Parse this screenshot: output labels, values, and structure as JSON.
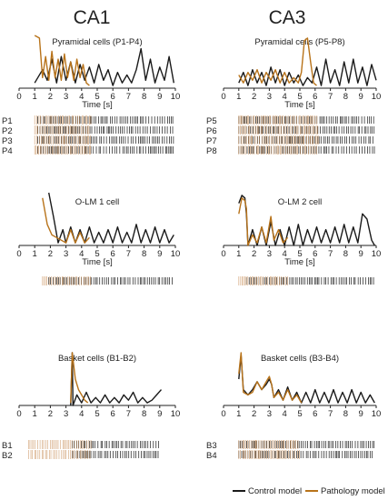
{
  "colors": {
    "control": "#1a1a1a",
    "pathology": "#b8731a",
    "raster_patho": "#c9905a"
  },
  "columns": [
    {
      "title": "CA1",
      "panels": [
        0,
        1,
        2
      ]
    },
    {
      "title": "CA3",
      "panels": [
        3,
        4,
        5
      ]
    }
  ],
  "legend": {
    "control": "Control model",
    "pathology": "Pathology model"
  },
  "chart_data": [
    {
      "type": "line",
      "region": "CA1",
      "title": "Pyramidal cells (P1-P4)",
      "xlabel": "Time [s]",
      "xlim": [
        0,
        10
      ],
      "xticks": [
        0,
        1,
        2,
        3,
        4,
        5,
        6,
        7,
        8,
        9,
        10
      ],
      "series": [
        {
          "name": "Control model",
          "x": [
            1.0,
            1.5,
            1.8,
            2.1,
            2.4,
            2.7,
            3.0,
            3.3,
            3.6,
            3.9,
            4.2,
            4.5,
            4.8,
            5.1,
            5.4,
            5.7,
            6.0,
            6.3,
            6.6,
            6.9,
            7.2,
            7.5,
            7.8,
            8.1,
            8.4,
            8.7,
            9.0,
            9.3,
            9.6,
            9.9
          ],
          "y": [
            0.1,
            0.35,
            0.15,
            0.55,
            0.1,
            0.6,
            0.15,
            0.5,
            0.1,
            0.45,
            0.15,
            0.4,
            0.1,
            0.45,
            0.15,
            0.35,
            0.05,
            0.3,
            0.1,
            0.25,
            0.1,
            0.35,
            0.75,
            0.15,
            0.55,
            0.1,
            0.4,
            0.15,
            0.6,
            0.1
          ]
        },
        {
          "name": "Pathology model",
          "x": [
            1.0,
            1.3,
            1.5,
            1.7,
            1.9,
            2.1,
            2.3,
            2.5,
            2.7,
            2.9,
            3.1,
            3.3,
            3.5,
            3.7,
            3.9,
            4.1,
            4.3,
            4.5
          ],
          "y": [
            1.0,
            0.95,
            0.2,
            0.6,
            0.15,
            0.7,
            0.2,
            0.55,
            0.15,
            0.65,
            0.2,
            0.5,
            0.15,
            0.55,
            0.2,
            0.45,
            0.1,
            0.05
          ]
        }
      ],
      "raster": {
        "labels": [
          "P1",
          "P2",
          "P3",
          "P4"
        ],
        "control_start": 1.2,
        "control_end": 9.9,
        "pathology_start": 1.0,
        "pathology_end": 4.6
      }
    },
    {
      "type": "line",
      "region": "CA1",
      "title": "O-LM 1 cell",
      "xlabel": "Time [s]",
      "xlim": [
        0,
        10
      ],
      "xticks": [
        0,
        1,
        2,
        3,
        4,
        5,
        6,
        7,
        8,
        9,
        10
      ],
      "series": [
        {
          "name": "Control model",
          "x": [
            1.9,
            2.2,
            2.5,
            2.8,
            3.0,
            3.3,
            3.6,
            3.9,
            4.2,
            4.5,
            4.8,
            5.1,
            5.4,
            5.7,
            6.0,
            6.3,
            6.6,
            6.9,
            7.2,
            7.5,
            7.8,
            8.1,
            8.4,
            8.7,
            9.0,
            9.3,
            9.6,
            9.9
          ],
          "y": [
            1.0,
            0.55,
            0.05,
            0.3,
            0.05,
            0.35,
            0.05,
            0.3,
            0.05,
            0.35,
            0.05,
            0.25,
            0.05,
            0.3,
            0.05,
            0.35,
            0.05,
            0.25,
            0.05,
            0.4,
            0.05,
            0.3,
            0.05,
            0.35,
            0.05,
            0.3,
            0.05,
            0.2
          ]
        },
        {
          "name": "Pathology model",
          "x": [
            1.5,
            1.8,
            2.1,
            2.4,
            2.7,
            3.0,
            3.3,
            3.6,
            3.9,
            4.2,
            4.5
          ],
          "y": [
            0.9,
            0.4,
            0.2,
            0.15,
            0.1,
            0.05,
            0.3,
            0.05,
            0.25,
            0.05,
            0.15
          ]
        }
      ],
      "raster": {
        "labels": [
          ""
        ],
        "control_start": 1.9,
        "control_end": 9.9,
        "pathology_start": 1.5,
        "pathology_end": 4.6
      }
    },
    {
      "type": "line",
      "region": "CA1",
      "title": "Basket cells (B1-B2)",
      "xlabel": "",
      "xlim": [
        0,
        10
      ],
      "xticks": [
        0,
        1,
        2,
        3,
        4,
        5,
        6,
        7,
        8,
        9,
        10
      ],
      "series": [
        {
          "name": "Control model",
          "x": [
            3.3,
            3.4,
            3.45,
            3.7,
            4.0,
            4.3,
            4.6,
            4.9,
            5.2,
            5.5,
            5.8,
            6.1,
            6.4,
            6.7,
            7.0,
            7.3,
            7.6,
            7.9,
            8.2,
            8.5,
            8.8,
            9.1
          ],
          "y": [
            0.0,
            1.0,
            0.0,
            0.2,
            0.05,
            0.25,
            0.05,
            0.15,
            0.05,
            0.2,
            0.05,
            0.15,
            0.05,
            0.2,
            0.1,
            0.25,
            0.05,
            0.15,
            0.05,
            0.1,
            0.2,
            0.3
          ]
        },
        {
          "name": "Pathology model",
          "x": [
            3.3,
            3.4,
            3.6,
            3.8,
            4.0,
            4.2,
            4.4
          ],
          "y": [
            0.05,
            1.0,
            0.5,
            0.3,
            0.2,
            0.1,
            0.05
          ]
        }
      ],
      "raster": {
        "labels": [
          "B1",
          "B2"
        ],
        "control_start": 3.4,
        "control_end": 9.0,
        "pathology_start": 0.6,
        "pathology_end": 4.6
      }
    },
    {
      "type": "line",
      "region": "CA3",
      "title": "Pyramidal cells (P5-P8)",
      "xlabel": "Time [s]",
      "xlim": [
        0,
        10
      ],
      "xticks": [
        0,
        1,
        2,
        3,
        4,
        5,
        6,
        7,
        8,
        9,
        10
      ],
      "series": [
        {
          "name": "Control model",
          "x": [
            1.0,
            1.3,
            1.6,
            1.9,
            2.2,
            2.5,
            2.8,
            3.1,
            3.4,
            3.7,
            4.0,
            4.3,
            4.6,
            4.9,
            5.2,
            5.5,
            5.8,
            6.1,
            6.4,
            6.7,
            7.0,
            7.3,
            7.6,
            7.9,
            8.2,
            8.5,
            8.8,
            9.1,
            9.4,
            9.7,
            10.0
          ],
          "y": [
            0.1,
            0.3,
            0.05,
            0.35,
            0.1,
            0.3,
            0.05,
            0.4,
            0.1,
            0.35,
            0.05,
            0.3,
            0.1,
            0.25,
            0.05,
            0.2,
            0.1,
            0.4,
            0.05,
            0.55,
            0.1,
            0.35,
            0.05,
            0.5,
            0.1,
            0.55,
            0.1,
            0.4,
            0.05,
            0.45,
            0.15
          ]
        },
        {
          "name": "Pathology model",
          "x": [
            1.0,
            1.3,
            1.6,
            1.9,
            2.2,
            2.5,
            2.8,
            3.1,
            3.4,
            3.7,
            4.0,
            4.3,
            4.6,
            4.9,
            5.1,
            5.3,
            5.5,
            5.7,
            5.9,
            6.1
          ],
          "y": [
            0.25,
            0.1,
            0.3,
            0.15,
            0.35,
            0.1,
            0.3,
            0.15,
            0.35,
            0.1,
            0.3,
            0.1,
            0.2,
            0.1,
            0.3,
            0.9,
            0.95,
            0.5,
            0.1,
            0.05
          ]
        }
      ],
      "raster": {
        "labels": [
          "P5",
          "P6",
          "P7",
          "P8"
        ],
        "control_start": 1.0,
        "control_end": 9.9,
        "pathology_start": 1.0,
        "pathology_end": 6.2
      }
    },
    {
      "type": "line",
      "region": "CA3",
      "title": "O-LM 2 cell",
      "xlabel": "Time [s]",
      "xlim": [
        0,
        10
      ],
      "xticks": [
        0,
        1,
        2,
        3,
        4,
        5,
        6,
        7,
        8,
        9,
        10
      ],
      "series": [
        {
          "name": "Control model",
          "x": [
            1.0,
            1.2,
            1.4,
            1.5,
            1.6,
            1.9,
            2.2,
            2.5,
            2.8,
            3.1,
            3.4,
            3.7,
            4.0,
            4.3,
            4.6,
            4.9,
            5.2,
            5.5,
            5.8,
            6.1,
            6.4,
            6.7,
            7.0,
            7.3,
            7.6,
            7.9,
            8.2,
            8.5,
            8.8,
            9.1,
            9.4,
            9.7,
            9.9
          ],
          "y": [
            0.8,
            0.95,
            0.9,
            0.6,
            0.0,
            0.3,
            0.0,
            0.35,
            0.0,
            0.45,
            0.0,
            0.3,
            0.0,
            0.35,
            0.0,
            0.4,
            0.0,
            0.3,
            0.05,
            0.35,
            0.05,
            0.3,
            0.05,
            0.35,
            0.05,
            0.4,
            0.05,
            0.35,
            0.05,
            0.6,
            0.5,
            0.1,
            0.0
          ]
        },
        {
          "name": "Pathology model",
          "x": [
            1.0,
            1.2,
            1.4,
            1.5,
            1.6,
            1.9,
            2.2,
            2.5,
            2.8,
            3.1,
            3.3,
            3.6,
            3.9,
            4.2
          ],
          "y": [
            0.6,
            0.9,
            0.85,
            0.7,
            0.0,
            0.2,
            0.05,
            0.35,
            0.05,
            0.55,
            0.1,
            0.3,
            0.05,
            0.15
          ]
        }
      ],
      "raster": {
        "labels": [
          ""
        ],
        "control_start": 1.5,
        "control_end": 9.9,
        "pathology_start": 1.0,
        "pathology_end": 4.3
      }
    },
    {
      "type": "line",
      "region": "CA3",
      "title": "Basket cells (B3-B4)",
      "xlabel": "",
      "xlim": [
        0,
        10
      ],
      "xticks": [
        0,
        1,
        2,
        3,
        4,
        5,
        6,
        7,
        8,
        9,
        10
      ],
      "series": [
        {
          "name": "Control model",
          "x": [
            1.0,
            1.15,
            1.3,
            1.6,
            1.9,
            2.2,
            2.5,
            2.8,
            3.0,
            3.15,
            3.3,
            3.6,
            3.9,
            4.2,
            4.5,
            4.8,
            5.1,
            5.4,
            5.7,
            6.0,
            6.3,
            6.6,
            6.9,
            7.2,
            7.5,
            7.8,
            8.1,
            8.4,
            8.7,
            9.0,
            9.3,
            9.6,
            9.9
          ],
          "y": [
            0.5,
            0.95,
            0.3,
            0.2,
            0.3,
            0.45,
            0.3,
            0.4,
            0.5,
            0.4,
            0.15,
            0.3,
            0.1,
            0.35,
            0.1,
            0.25,
            0.05,
            0.25,
            0.05,
            0.3,
            0.05,
            0.25,
            0.05,
            0.3,
            0.05,
            0.25,
            0.05,
            0.3,
            0.05,
            0.25,
            0.05,
            0.2,
            0.05
          ]
        },
        {
          "name": "Pathology model",
          "x": [
            1.0,
            1.15,
            1.3,
            1.6,
            1.9,
            2.2,
            2.5,
            2.8,
            3.0,
            3.15,
            3.3,
            3.6,
            3.9,
            4.2,
            4.5,
            4.8,
            5.1
          ],
          "y": [
            0.6,
            1.0,
            0.25,
            0.2,
            0.25,
            0.45,
            0.3,
            0.45,
            0.55,
            0.4,
            0.15,
            0.25,
            0.1,
            0.3,
            0.1,
            0.2,
            0.05
          ]
        }
      ],
      "raster": {
        "labels": [
          "B3",
          "B4"
        ],
        "control_start": 1.0,
        "control_end": 9.9,
        "pathology_start": 1.0,
        "pathology_end": 5.0
      }
    }
  ]
}
